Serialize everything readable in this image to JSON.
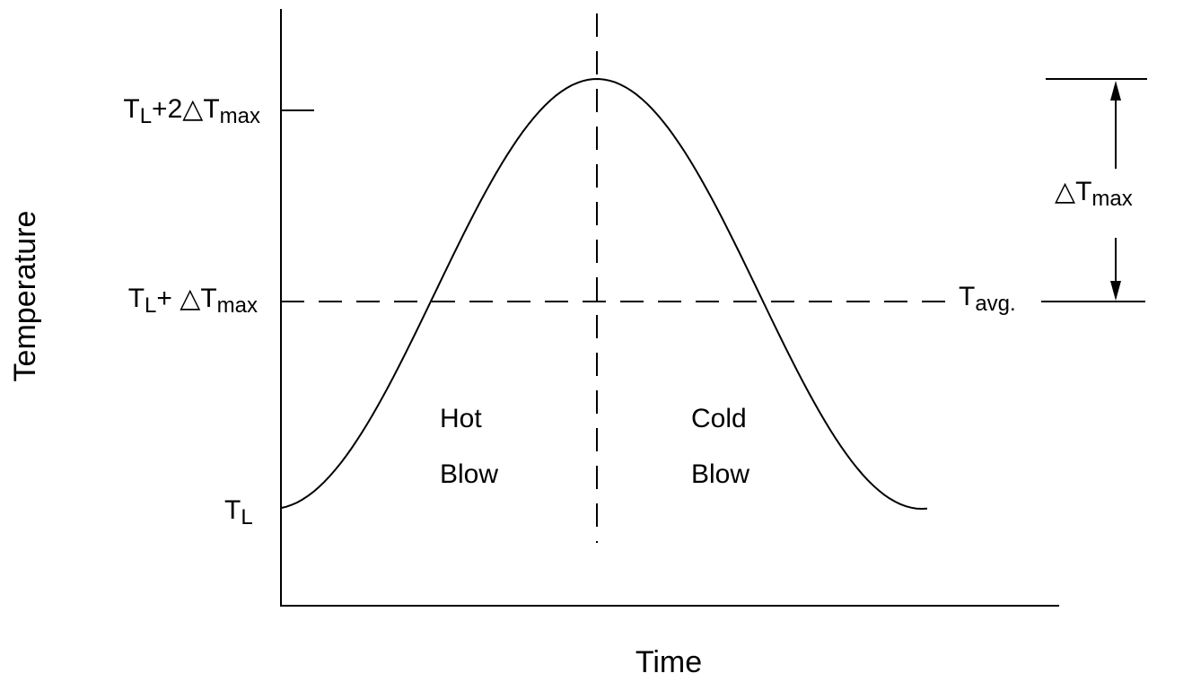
{
  "axes": {
    "y_label": "Temperature",
    "x_label": "Time"
  },
  "levels": {
    "top": [
      "T",
      "L",
      "+2△T",
      "max"
    ],
    "avg": [
      "T",
      "L",
      "+ △T",
      "max"
    ],
    "low": [
      "T",
      "L"
    ]
  },
  "annotations": {
    "avg": [
      "T",
      "avg."
    ],
    "delta": [
      "△T",
      "max"
    ],
    "hot": [
      "Hot",
      "Blow"
    ],
    "cold": [
      "Cold",
      "Blow"
    ]
  }
}
